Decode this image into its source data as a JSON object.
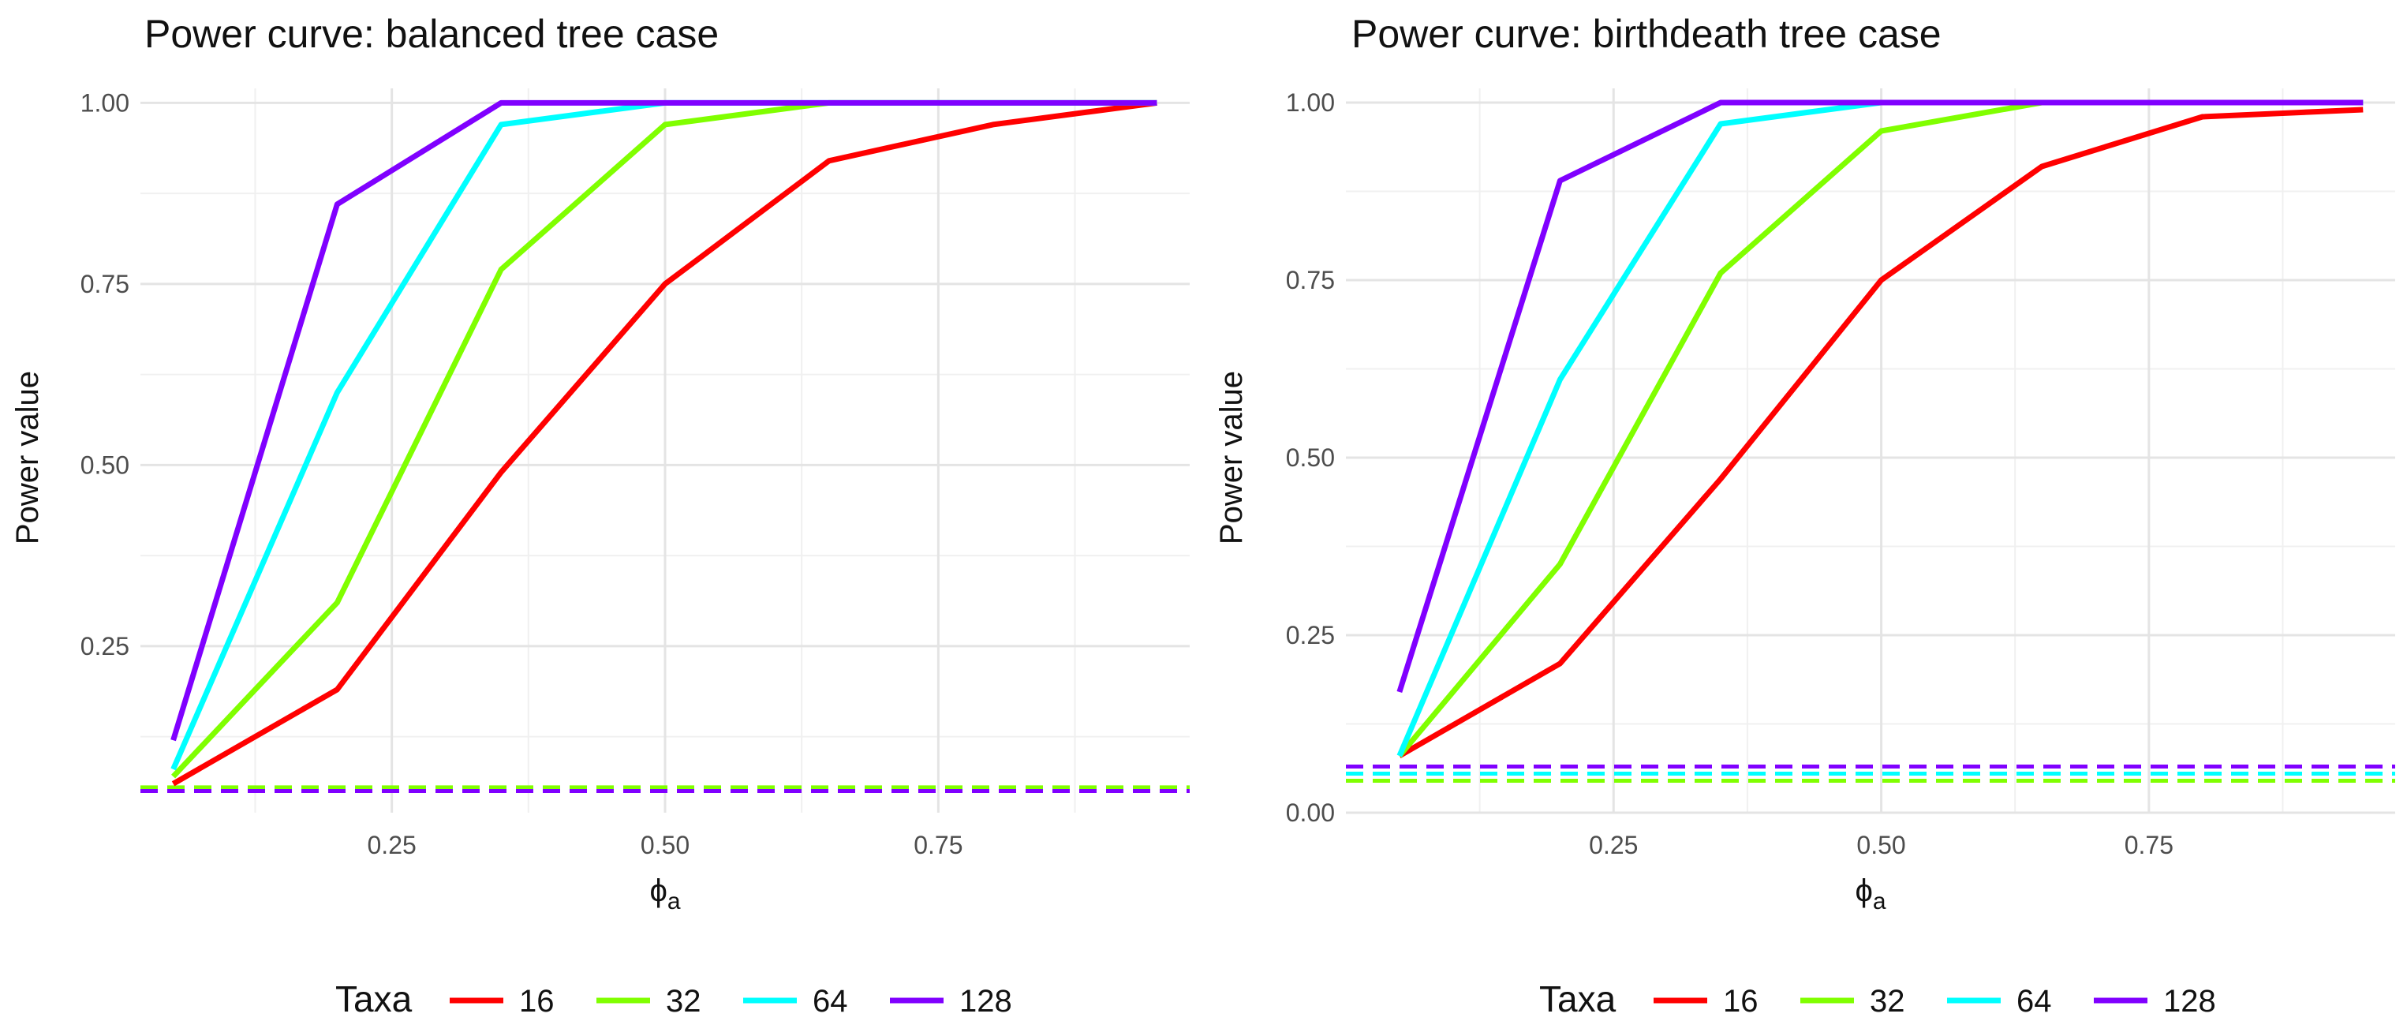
{
  "chart_data": [
    {
      "type": "line",
      "title": "Power curve: balanced tree case",
      "xlabel": "ϕ",
      "xlabel_sub": "a",
      "ylabel": "Power value",
      "xlim": [
        0.02,
        0.98
      ],
      "ylim": [
        0.02,
        1.02
      ],
      "xticks": [
        0.25,
        0.5,
        0.75
      ],
      "xtick_labels": [
        "0.25",
        "0.50",
        "0.75"
      ],
      "yticks": [
        0.25,
        0.5,
        0.75,
        1.0
      ],
      "ytick_labels": [
        "0.25",
        "0.50",
        "0.75",
        "1.00"
      ],
      "x": [
        0.05,
        0.2,
        0.35,
        0.5,
        0.65,
        0.8,
        0.95
      ],
      "series": [
        {
          "name": "16",
          "color": "#ff0000",
          "values": [
            0.06,
            0.19,
            0.49,
            0.75,
            0.92,
            0.97,
            1.0
          ],
          "baseline": 0.05
        },
        {
          "name": "32",
          "color": "#80ff00",
          "values": [
            0.07,
            0.31,
            0.77,
            0.97,
            1.0,
            1.0,
            1.0
          ],
          "baseline": 0.055
        },
        {
          "name": "64",
          "color": "#00ffff",
          "values": [
            0.08,
            0.6,
            0.97,
            1.0,
            1.0,
            1.0,
            1.0
          ],
          "baseline": 0.05
        },
        {
          "name": "128",
          "color": "#8000ff",
          "values": [
            0.12,
            0.86,
            1.0,
            1.0,
            1.0,
            1.0,
            1.0
          ],
          "baseline": 0.05
        }
      ],
      "legend": {
        "title": "Taxa",
        "position": "bottom"
      }
    },
    {
      "type": "line",
      "title": "Power curve: birthdeath tree case",
      "xlabel": "ϕ",
      "xlabel_sub": "a",
      "ylabel": "Power value",
      "xlim": [
        0.0,
        0.98
      ],
      "ylim": [
        0.0,
        1.02
      ],
      "xticks": [
        0.25,
        0.5,
        0.75
      ],
      "xtick_labels": [
        "0.25",
        "0.50",
        "0.75"
      ],
      "yticks": [
        0.0,
        0.25,
        0.5,
        0.75,
        1.0
      ],
      "ytick_labels": [
        "0.00",
        "0.25",
        "0.50",
        "0.75",
        "1.00"
      ],
      "x": [
        0.05,
        0.2,
        0.35,
        0.5,
        0.65,
        0.8,
        0.95
      ],
      "series": [
        {
          "name": "16",
          "color": "#ff0000",
          "values": [
            0.08,
            0.21,
            0.47,
            0.75,
            0.91,
            0.98,
            0.99
          ],
          "baseline": 0.055
        },
        {
          "name": "32",
          "color": "#80ff00",
          "values": [
            0.08,
            0.35,
            0.76,
            0.96,
            1.0,
            1.0,
            1.0
          ],
          "baseline": 0.045
        },
        {
          "name": "64",
          "color": "#00ffff",
          "values": [
            0.08,
            0.61,
            0.97,
            1.0,
            1.0,
            1.0,
            1.0
          ],
          "baseline": 0.055
        },
        {
          "name": "128",
          "color": "#8000ff",
          "values": [
            0.17,
            0.89,
            1.0,
            1.0,
            1.0,
            1.0,
            1.0
          ],
          "baseline": 0.065
        }
      ],
      "legend": {
        "title": "Taxa",
        "position": "bottom"
      }
    }
  ]
}
